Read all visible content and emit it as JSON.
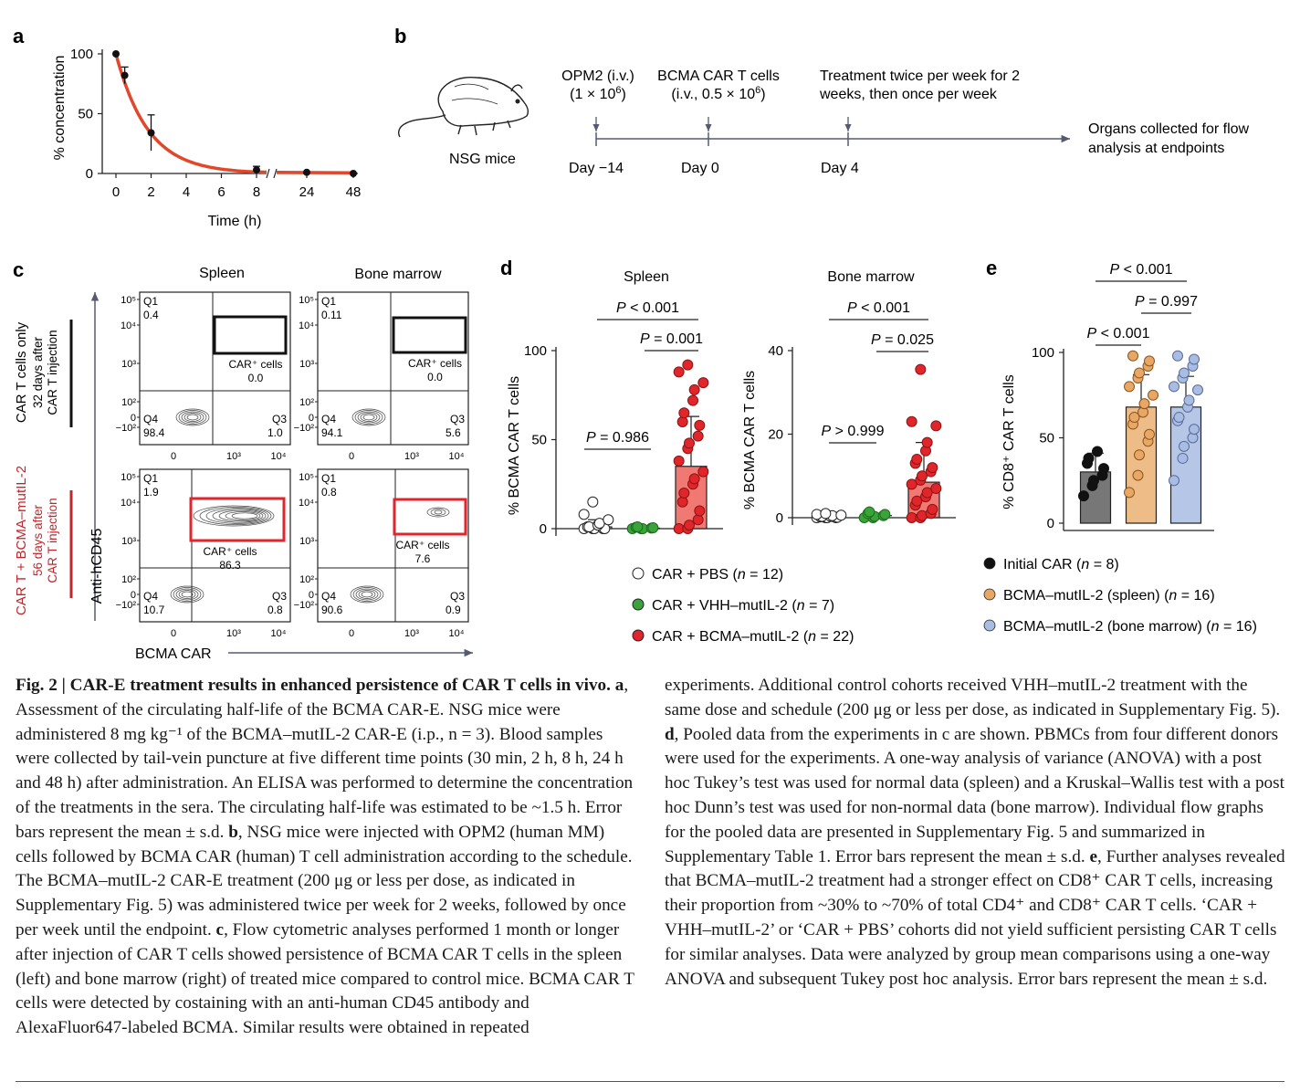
{
  "panels": {
    "a": {
      "label": "a",
      "chart_data": {
        "type": "line",
        "x": [
          0,
          0.5,
          2,
          8,
          24,
          48
        ],
        "y": [
          100,
          82,
          34,
          3,
          1,
          0
        ],
        "err": [
          0,
          7,
          15,
          3,
          0,
          0
        ],
        "xlabel": "Time (h)",
        "ylabel": "% concentration",
        "xticks": [
          "0",
          "2",
          "4",
          "6",
          "8",
          "24",
          "48"
        ],
        "yticks": [
          "0",
          "50",
          "100"
        ],
        "ylim": [
          0,
          100
        ],
        "line_color": "#e2472b"
      }
    },
    "b": {
      "label": "b",
      "mouse_label": "NSG mice",
      "events": [
        {
          "top1": "OPM2 (i.v.)",
          "top2": "(1 × 10",
          "sup": "6",
          "top2_end": ")",
          "day": "Day −14"
        },
        {
          "top1": "BCMA CAR T cells",
          "top2": "(i.v., 0.5 × 10",
          "sup": "6",
          "top2_end": ")",
          "day": "Day 0"
        },
        {
          "top1": "Treatment twice per week for 2",
          "top2": "weeks, then once per week",
          "day": "Day 4"
        }
      ],
      "end_label_1": "Organs collected for flow",
      "end_label_2": "analysis at endpoints"
    },
    "c": {
      "label": "c",
      "col_spleen": "Spleen",
      "col_bm": "Bone marrow",
      "row1_label": "CAR T cells only",
      "row1_sub1": "32 days after",
      "row1_sub2": "CAR T injection",
      "row2_label": "CAR T + BCMA–mutIL-2",
      "row2_sub1": "56 days after",
      "row2_sub2": "CAR T injection",
      "ylabel": "Anti-hCD45",
      "xlabel": "BCMA CAR",
      "gate_label": "CAR⁺ cells",
      "plots": [
        {
          "q1": "0.4",
          "car": "0.0",
          "q4": "98.4",
          "q3": "1.0"
        },
        {
          "q1": "0.11",
          "car": "0.0",
          "q4": "94.1",
          "q3": "5.6"
        },
        {
          "q1": "1.9",
          "car": "86.3",
          "q4": "10.7",
          "q3": "0.8"
        },
        {
          "q1": "0.8",
          "car": "7.6",
          "q4": "90.6",
          "q3": "0.9"
        }
      ],
      "gate_colors": [
        "#111111",
        "#111111",
        "#e0262b",
        "#e0262b"
      ]
    },
    "d": {
      "label": "d",
      "ylabel": "% BCMA CAR T cells",
      "chart_data": [
        {
          "type": "bar",
          "title": "Spleen",
          "categories": [
            "CAR + PBS",
            "CAR + VHH–mutIL-2",
            "CAR + BCMA–mutIL-2"
          ],
          "values": [
            1,
            0.3,
            35
          ],
          "err": [
            4,
            0.5,
            28
          ],
          "ylim": [
            0,
            100
          ],
          "yticks": [
            "0",
            "50",
            "100"
          ],
          "points": [
            [
              0,
              0,
              0,
              0,
              0,
              1,
              1,
              2,
              3,
              5,
              8,
              15
            ],
            [
              0,
              0,
              0,
              0.3,
              0.5,
              0.8,
              1
            ],
            [
              0,
              0,
              2,
              5,
              10,
              15,
              20,
              25,
              28,
              32,
              38,
              45,
              48,
              52,
              58,
              60,
              65,
              72,
              78,
              82,
              88,
              92
            ]
          ],
          "sig": [
            {
              "text": "P = 0.986"
            },
            {
              "text": "P = 0.001"
            },
            {
              "text": "P < 0.001"
            }
          ]
        },
        {
          "type": "bar",
          "title": "Bone marrow",
          "categories": [
            "CAR + PBS",
            "CAR + VHH–mutIL-2",
            "CAR + BCMA–mutIL-2"
          ],
          "values": [
            0.2,
            0.5,
            8.5
          ],
          "err": [
            0.3,
            0.4,
            9.5
          ],
          "ylim": [
            0,
            40
          ],
          "yticks": [
            "0",
            "20",
            "40"
          ],
          "points": [
            [
              0,
              0,
              0,
              0,
              0.1,
              0.2,
              0.3,
              0.3,
              0.5,
              0.6,
              0.8,
              1
            ],
            [
              0,
              0,
              0.3,
              0.5,
              0.8,
              1,
              1.4
            ],
            [
              0,
              0,
              0.5,
              1,
              2,
              3,
              4,
              5,
              6,
              7,
              8,
              9,
              10,
              11,
              12,
              13,
              14,
              16,
              18,
              22,
              23,
              35.5
            ]
          ],
          "sig": [
            {
              "text": "P > 0.999"
            },
            {
              "text": "P = 0.025"
            },
            {
              "text": "P < 0.001"
            }
          ]
        }
      ],
      "legend": [
        {
          "label": "CAR + PBS",
          "n": "12",
          "color": "#ffffff"
        },
        {
          "label": "CAR + VHH–mutIL-2",
          "n": "7",
          "color": "#3aa33a"
        },
        {
          "label": "CAR + BCMA–mutIL-2",
          "n": "22",
          "color": "#e0262b"
        }
      ],
      "bar_colors": [
        "#ffffff",
        "#9fd49a",
        "#f07a73"
      ]
    },
    "e": {
      "label": "e",
      "ylabel": "% CD8⁺ CAR T cells",
      "chart_data": {
        "type": "bar",
        "categories": [
          "Initial CAR",
          "BCMA–mutIL-2 (spleen)",
          "BCMA–mutIL-2 (bone marrow)"
        ],
        "values": [
          30,
          68,
          68
        ],
        "err": [
          11,
          19,
          18
        ],
        "ylim": [
          0,
          100
        ],
        "yticks": [
          "0",
          "50",
          "100"
        ],
        "points": [
          [
            16,
            22,
            25,
            28,
            32,
            35,
            38,
            42
          ],
          [
            18,
            28,
            40,
            48,
            52,
            58,
            62,
            65,
            70,
            75,
            80,
            85,
            88,
            92,
            95,
            98
          ],
          [
            25,
            38,
            45,
            50,
            55,
            60,
            62,
            68,
            72,
            78,
            80,
            85,
            88,
            92,
            96,
            98
          ]
        ],
        "sig": [
          {
            "text": "P < 0.001"
          },
          {
            "text": "P = 0.997"
          },
          {
            "text": "P < 0.001"
          }
        ]
      },
      "legend": [
        {
          "label": "Initial CAR",
          "n": "8",
          "color": "#111111"
        },
        {
          "label": "BCMA–mutIL-2 (spleen)",
          "n": "16",
          "color": "#e8a765"
        },
        {
          "label": "BCMA–mutIL-2 (bone marrow)",
          "n": "16",
          "color": "#a9bde2"
        }
      ],
      "bar_colors": [
        "#777777",
        "#eebc86",
        "#b6c6e6"
      ],
      "pt_colors": [
        "#111111",
        "#e8a765",
        "#a9bde2"
      ]
    }
  },
  "caption_left": {
    "title": "Fig. 2 | CAR-E treatment results in enhanced persistence of CAR T cells in vivo.",
    "text_a": "Assessment of the circulating half-life of the BCMA CAR-E. NSG mice were administered 8 mg kg⁻¹ of the BCMA–mutIL-2 CAR-E (i.p., n = 3). Blood samples were collected by tail-vein puncture at five different time points (30 min, 2 h, 8 h, 24 h and 48 h) after administration. An ELISA was performed to determine the concentration of the treatments in the sera. The circulating half-life was estimated to be ~1.5 h. Error bars represent the mean ± s.d.",
    "text_b": "NSG mice were injected with OPM2 (human MM) cells followed by BCMA CAR (human) T cell administration according to the schedule. The BCMA–mutIL-2 CAR-E treatment (200 μg or less per dose, as indicated in Supplementary Fig. 5) was administered twice per week for 2 weeks, followed by once per week until the endpoint.",
    "text_c": "Flow cytometric analyses performed 1 month or longer after injection of CAR T cells showed persistence of BCMA CAR T cells in the spleen (left) and bone marrow (right) of treated mice compared to control mice. BCMA CAR T cells were detected by costaining with an anti-human CD45 antibody and AlexaFluor647-labeled BCMA. Similar results were obtained in repeated"
  },
  "caption_right": {
    "text_c2": "experiments. Additional control cohorts received VHH–mutIL-2 treatment with the same dose and schedule (200 μg or less per dose, as indicated in Supplementary Fig. 5).",
    "text_d": "Pooled data from the experiments in c are shown. PBMCs from four different donors were used for the experiments. A one-way analysis of variance (ANOVA) with a post hoc Tukey’s test was used for normal data (spleen) and a Kruskal–Wallis test with a post hoc Dunn’s test was used for non-normal data (bone marrow). Individual flow graphs for the pooled data are presented in Supplementary Fig. 5 and summarized in Supplementary Table 1. Error bars represent the mean ± s.d.",
    "text_e": "Further analyses revealed that BCMA–mutIL-2 treatment had a stronger effect on CD8⁺ CAR T cells, increasing their proportion from ~30% to ~70% of total CD4⁺ and CD8⁺ CAR T cells. ‘CAR + VHH–mutIL-2’ or ‘CAR + PBS’ cohorts did not yield sufficient persisting CAR T cells for similar analyses. Data were analyzed by group mean comparisons using a one-way ANOVA and subsequent Tukey post hoc analysis. Error bars represent the mean ± s.d."
  }
}
